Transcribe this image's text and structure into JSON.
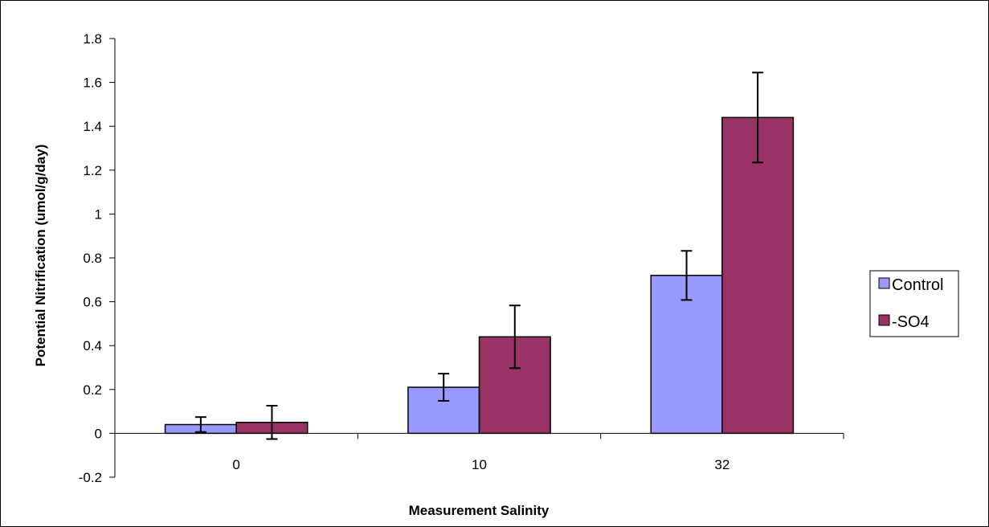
{
  "chart_data": {
    "type": "bar",
    "categories": [
      "0",
      "10",
      "32"
    ],
    "series": [
      {
        "name": "Control",
        "values": [
          0.04,
          0.21,
          0.72
        ],
        "errors": [
          0.034,
          0.062,
          0.112
        ],
        "color": "#9999FF"
      },
      {
        "name": "-SO4",
        "values": [
          0.05,
          0.44,
          1.44
        ],
        "errors": [
          0.076,
          0.143,
          0.205
        ],
        "color": "#993366"
      }
    ],
    "title": "",
    "xlabel": "Measurement Salinity",
    "ylabel": "Potential Nitrification (umol/g/day)",
    "ylim": [
      -0.2,
      1.8
    ],
    "yticks": [
      "-0.2",
      "0",
      "0.2",
      "0.4",
      "0.6",
      "0.8",
      "1",
      "1.2",
      "1.4",
      "1.6",
      "1.8"
    ],
    "grid": false,
    "legend_position": "right"
  }
}
